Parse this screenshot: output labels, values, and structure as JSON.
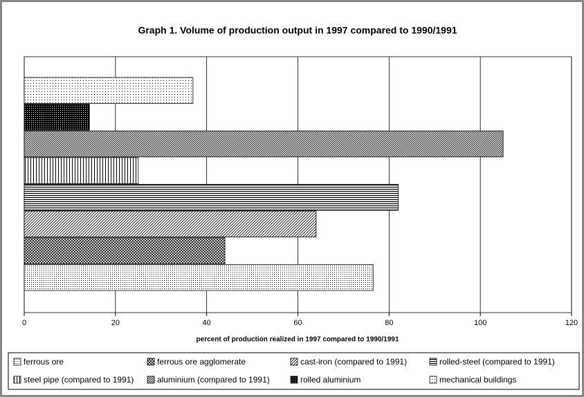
{
  "chart_data": {
    "type": "bar",
    "orientation": "horizontal",
    "title": "Graph 1. Volume of production output in 1997 compared to 1990/1991",
    "x_label": "percent of production realized in 1997 compared to 1990/1991",
    "categories": [
      null
    ],
    "series": [
      {
        "name": "ferrous ore",
        "pattern": "dots-dense",
        "color": "#000000",
        "values": [
          76.5
        ]
      },
      {
        "name": "ferrous ore agglomerate",
        "pattern": "crosshatch",
        "color": "#000000",
        "values": [
          44
        ]
      },
      {
        "name": "cast-iron (compared to 1991)",
        "pattern": "diagonal",
        "color": "#000000",
        "values": [
          64
        ]
      },
      {
        "name": "rolled-steel (compared to 1991)",
        "pattern": "horizontal",
        "color": "#000000",
        "values": [
          82
        ]
      },
      {
        "name": "steel pipe (compared to 1991)",
        "pattern": "vertical",
        "color": "#000000",
        "values": [
          25
        ]
      },
      {
        "name": "aluminium (compared to 1991)",
        "pattern": "diagonal-dense",
        "color": "#000000",
        "values": [
          105
        ]
      },
      {
        "name": "rolled aluminium",
        "pattern": "solid-dots",
        "color": "#000000",
        "values": [
          14.3
        ]
      },
      {
        "name": "mechanical buildings",
        "pattern": "dots-sparse",
        "color": "#000000",
        "values": [
          37
        ]
      }
    ],
    "xlim": [
      0,
      120
    ],
    "xticks": [
      0,
      20,
      40,
      60,
      80,
      100,
      120
    ],
    "grid": true
  }
}
